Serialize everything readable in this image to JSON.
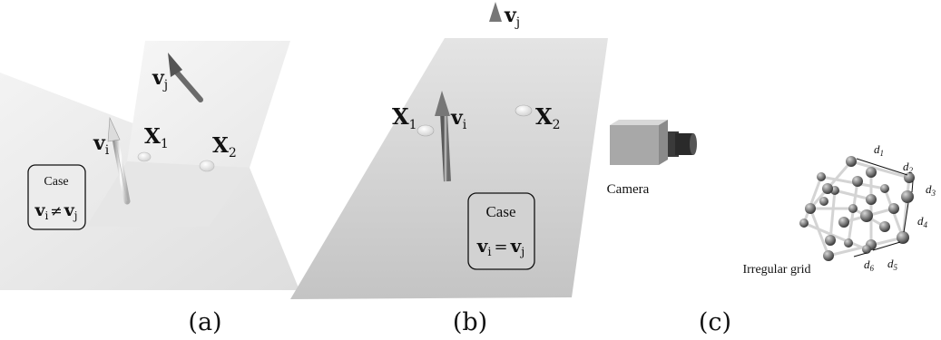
{
  "panel_a": {
    "vi": "v",
    "vi_sub": "i",
    "vj": "v",
    "vj_sub": "j",
    "x1": "X",
    "x1_sub": "1",
    "x2": "X",
    "x2_sub": "2",
    "case_title": "Case",
    "case_left": "v",
    "case_left_sub": "i",
    "case_op": "≠",
    "case_right": "v",
    "case_right_sub": "j",
    "caption": "(a)"
  },
  "panel_b": {
    "vi": "v",
    "vi_sub": "i",
    "vj": "v",
    "vj_sub": "j",
    "x1": "X",
    "x1_sub": "1",
    "x2": "X",
    "x2_sub": "2",
    "case_title": "Case",
    "case_left": "v",
    "case_left_sub": "i",
    "case_op": "=",
    "case_right": "v",
    "case_right_sub": "j",
    "caption": "(b)"
  },
  "panel_c": {
    "camera_label": "Camera",
    "grid_label": "Irregular grid",
    "d1": "d",
    "d1_sub": "1",
    "d2": "d",
    "d2_sub": "2",
    "d3": "d",
    "d3_sub": "3",
    "d4": "d",
    "d4_sub": "4",
    "d5": "d",
    "d5_sub": "5",
    "d6": "d",
    "d6_sub": "6",
    "caption": "(c)"
  }
}
